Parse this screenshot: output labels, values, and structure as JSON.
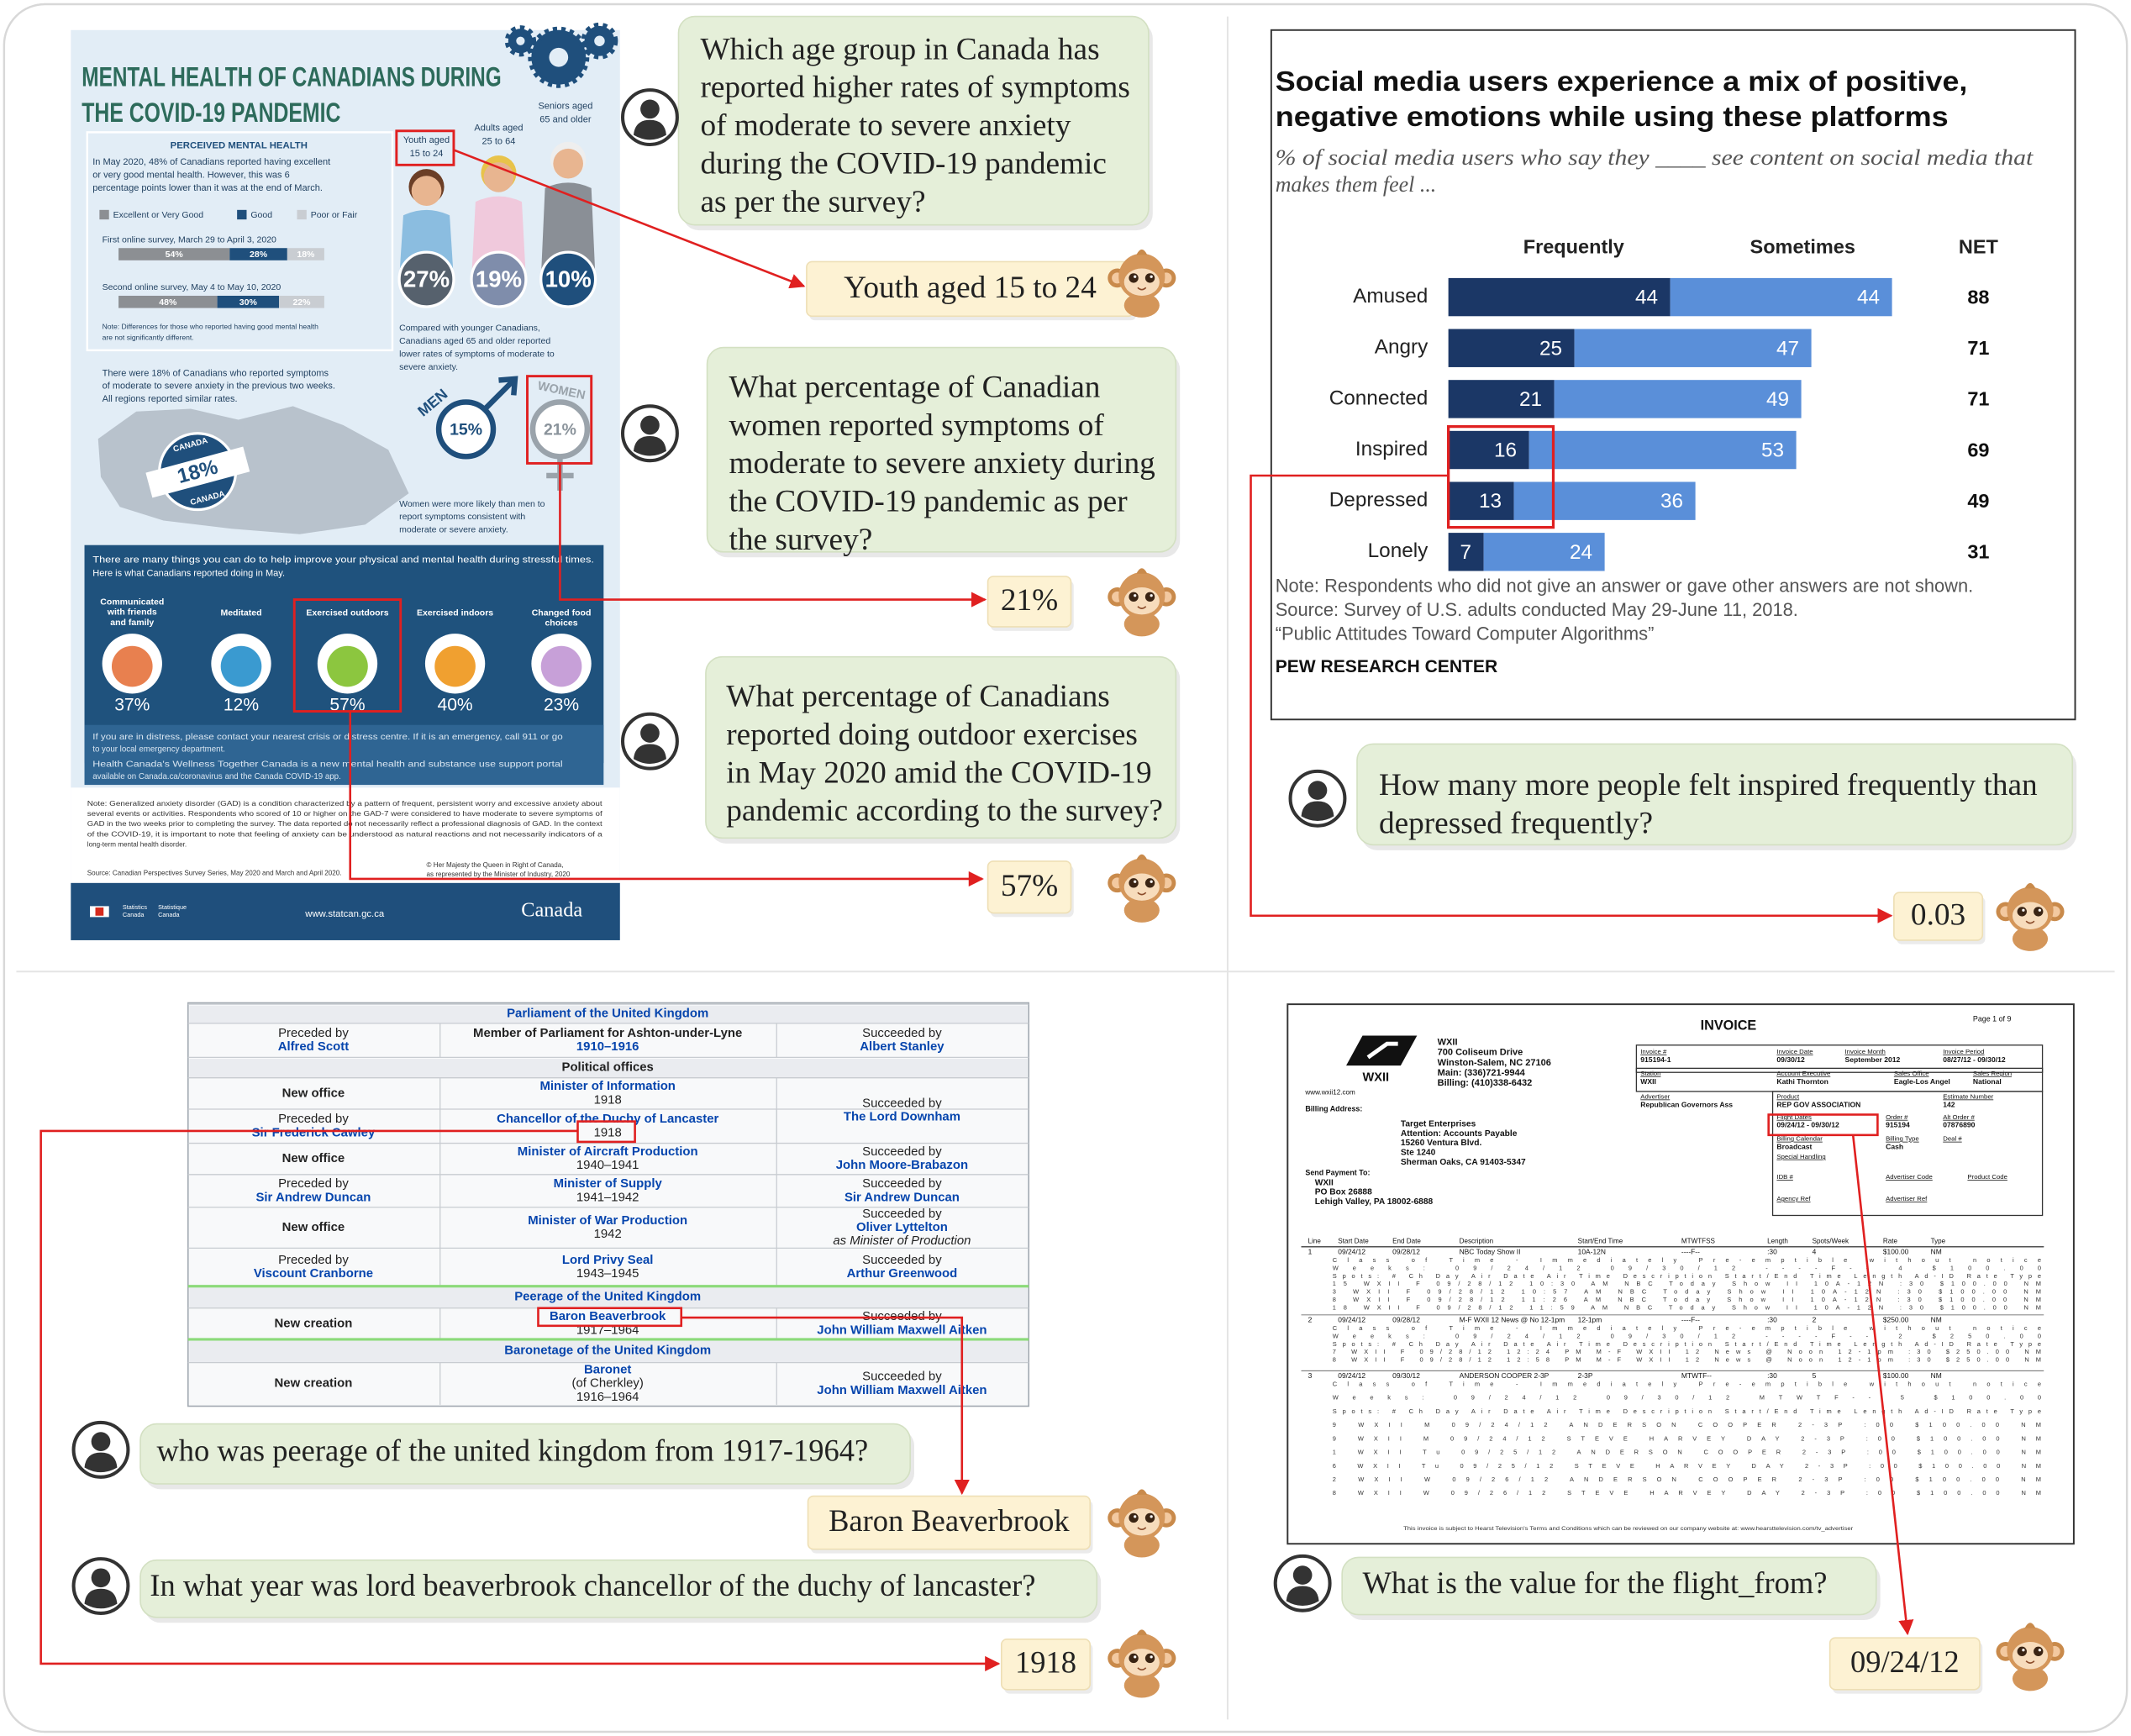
{
  "qa": [
    {
      "question": [
        "Which age group in Canada has",
        "reported higher rates of symptoms",
        "of moderate to severe anxiety",
        "during the COVID-19 pandemic",
        "as per the survey?"
      ],
      "answer": "Youth aged 15 to 24"
    },
    {
      "question": [
        "What percentage of Canadian",
        "women reported symptoms of",
        "moderate to severe anxiety during",
        "the COVID-19 pandemic as per",
        "the survey?"
      ],
      "answer": "21%"
    },
    {
      "question": [
        "What percentage of Canadians",
        "reported doing outdoor exercises",
        "in May 2020 amid the COVID-19",
        "pandemic according to the survey?"
      ],
      "answer": "57%"
    },
    {
      "question": [
        "How many more people felt inspired frequently than",
        "depressed frequently?"
      ],
      "answer": "0.03"
    },
    {
      "question": [
        "who was peerage of the united kingdom from 1917-1964?"
      ],
      "answer": "Baron Beaverbrook"
    },
    {
      "question": [
        "In what year was lord beaverbrook chancellor of the duchy of lancaster?"
      ],
      "answer": "1918"
    },
    {
      "question": [
        "What is the value for the flight_from?"
      ],
      "answer": "09/24/12"
    }
  ],
  "infographic": {
    "title": [
      "MENTAL HEALTH OF CANADIANS DURING",
      "THE COVID-19 PANDEMIC"
    ],
    "section": "PERCEIVED MENTAL HEALTH",
    "intro": [
      "In May 2020, 48% of Canadians reported having excellent",
      "or very good mental health. However, this was 6",
      "percentage points lower than it was at the end of March."
    ],
    "legend": [
      "Excellent or Very Good",
      "Good",
      "Poor or Fair"
    ],
    "surveys": [
      {
        "label": "First online survey, March 29 to April 3, 2020",
        "values": [
          54,
          28,
          18
        ],
        "value_labels": [
          "54%",
          "28%",
          "18%"
        ]
      },
      {
        "label": "Second online survey, May 4 to May 10, 2020",
        "values": [
          48,
          30,
          22
        ],
        "value_labels": [
          "48%",
          "30%",
          "22%"
        ]
      }
    ],
    "survey_note": [
      "Note: Differences for those who reported having good mental health",
      "are not significantly different."
    ],
    "age_groups": [
      {
        "label": [
          "Youth aged",
          "15 to 24"
        ],
        "value": "27%"
      },
      {
        "label": [
          "Adults aged",
          "25 to 64"
        ],
        "value": "19%"
      },
      {
        "label": [
          "Seniors aged",
          "65 and older"
        ],
        "value": "10%"
      }
    ],
    "age_note": [
      "Compared with younger Canadians,",
      "Canadians aged 65 and older reported",
      "lower rates of symptoms of moderate to",
      "severe anxiety."
    ],
    "overall_note": [
      "There were 18% of Canadians who reported symptoms",
      "of moderate to severe anxiety in the previous two weeks.",
      "All regions reported similar rates."
    ],
    "overall_value": "18%",
    "country": "CANADA",
    "gender": [
      {
        "label": "MEN",
        "value": "15%"
      },
      {
        "label": "WOMEN",
        "value": "21%"
      }
    ],
    "gender_note": [
      "Women were more likely than men to",
      "report symptoms consistent with",
      "moderate or severe anxiety."
    ],
    "activities_intro": [
      "There are many things you can do to help improve your physical and mental health during stressful times.",
      "Here is what Canadians reported doing in May."
    ],
    "activities": [
      {
        "label": [
          "Communicated",
          "with friends",
          "and family"
        ],
        "value": "37%"
      },
      {
        "label": [
          "Meditated"
        ],
        "value": "12%"
      },
      {
        "label": [
          "Exercised outdoors"
        ],
        "value": "57%"
      },
      {
        "label": [
          "Exercised indoors"
        ],
        "value": "40%"
      },
      {
        "label": [
          "Changed food",
          "choices"
        ],
        "value": "23%"
      }
    ],
    "help": [
      "If you are in distress, please contact your nearest crisis or distress centre. If it is an emergency, call 911 or go",
      "to your local emergency department.",
      "Health Canada's Wellness Together Canada is a new mental health and substance use support portal",
      "available on Canada.ca/coronavirus and the Canada COVID-19 app."
    ],
    "footnote": [
      "Note: Generalized anxiety disorder (GAD) is a condition characterized by a pattern of frequent, persistent worry and excessive anxiety about",
      "several events or activities. Respondents who scored of 10 or higher on the GAD-7 were considered to have moderate to severe symptoms of",
      "GAD in the two weeks prior to completing the survey. The data reported do not necessarily reflect a professional diagnosis of GAD. In the context",
      "of the COVID-19, it is important to note that feeling of anxiety can be understood as natural reactions and not necessarily indicators of a",
      "long-term mental health disorder."
    ],
    "source": "Source: Canadian Perspectives Survey Series, May 2020 and March and April 2020.",
    "copyright": [
      "© Her Majesty the Queen in Right of Canada,",
      "as represented by the Minister of Industry, 2020"
    ],
    "agency": [
      "Statistics",
      "Canada"
    ],
    "agency_fr": [
      "Statistique",
      "Canada"
    ],
    "website": "www.statcan.gc.ca",
    "wordmark": "Canada"
  },
  "chart_data": {
    "type": "bar",
    "orientation": "horizontal",
    "stacked": true,
    "title": [
      "Social media users experience a mix of positive,",
      "negative emotions while using these platforms"
    ],
    "subtitle": [
      "% of social media users who say they ____ see content on social media that",
      "makes them feel ..."
    ],
    "categories": [
      "Amused",
      "Angry",
      "Connected",
      "Inspired",
      "Depressed",
      "Lonely"
    ],
    "series": [
      {
        "name": "Frequently",
        "color": "#1b3766",
        "values": [
          44,
          25,
          21,
          16,
          13,
          7
        ]
      },
      {
        "name": "Sometimes",
        "color": "#5a8fd9",
        "values": [
          44,
          47,
          49,
          53,
          36,
          24
        ]
      }
    ],
    "net_label": "NET",
    "net": [
      88,
      71,
      71,
      69,
      49,
      31
    ],
    "notes": [
      "Note: Respondents who did not give an answer or gave other answers are not shown.",
      "Source: Survey of U.S. adults conducted May 29-June 11, 2018.",
      "“Public Attitudes Toward Computer Algorithms”"
    ],
    "credit": "PEW RESEARCH CENTER"
  },
  "wiki_table": {
    "rows": [
      {
        "section": "Parliament of the United Kingdom"
      },
      {
        "cells": [
          [
            "Preceded by",
            "Alfred Scott"
          ],
          [
            "Member of Parliament for Ashton-under-Lyne",
            "1910–1916"
          ],
          [
            "Succeeded by",
            "Albert Stanley"
          ]
        ]
      },
      {
        "section": "Political offices"
      },
      {
        "cells": [
          [
            "New office"
          ],
          [
            "Minister of Information",
            "1918"
          ],
          [
            "Succeeded by",
            "The Lord Downham"
          ]
        ]
      },
      {
        "cells": [
          [
            "Preceded by",
            "Sir Frederick Cawley"
          ],
          [
            "Chancellor of the Duchy of Lancaster",
            "1918"
          ]
        ]
      },
      {
        "cells": [
          [
            "New office"
          ],
          [
            "Minister of Aircraft Production",
            "1940–1941"
          ],
          [
            "Succeeded by",
            "John Moore-Brabazon"
          ]
        ]
      },
      {
        "cells": [
          [
            "Preceded by",
            "Sir Andrew Duncan"
          ],
          [
            "Minister of Supply",
            "1941–1942"
          ],
          [
            "Succeeded by",
            "Sir Andrew Duncan"
          ]
        ]
      },
      {
        "cells": [
          [
            "New office"
          ],
          [
            "Minister of War Production",
            "1942"
          ],
          [
            "Succeeded by",
            "Oliver Lyttelton",
            "as Minister of Production"
          ]
        ]
      },
      {
        "cells": [
          [
            "Preceded by",
            "Viscount Cranborne"
          ],
          [
            "Lord Privy Seal",
            "1943–1945"
          ],
          [
            "Succeeded by",
            "Arthur Greenwood"
          ]
        ]
      },
      {
        "section": "Peerage of the United Kingdom"
      },
      {
        "cells": [
          [
            "New creation"
          ],
          [
            "Baron Beaverbrook",
            "1917–1964"
          ],
          [
            "Succeeded by",
            "John William Maxwell Aitken"
          ]
        ]
      },
      {
        "section": "Baronetage of the United Kingdom"
      },
      {
        "cells": [
          [
            "New creation"
          ],
          [
            "Baronet",
            "(of Cherkley)",
            "1916–1964"
          ],
          [
            "Succeeded by",
            "John William Maxwell Aitken"
          ]
        ]
      }
    ]
  },
  "invoice": {
    "title": "INVOICE",
    "page": "Page 1 of 9",
    "logo": "WXII",
    "station_address": [
      "WXII",
      "700 Coliseum Drive",
      "Winston-Salem, NC 27106",
      "Main: (336)721-9944",
      "Billing: (410)338-6432"
    ],
    "website": "www.wxii12.com",
    "billing_label": "Billing Address:",
    "billing_address": [
      "Target Enterprises",
      "Attention: Accounts Payable",
      "15260 Ventura Blvd.",
      "Ste 1240",
      "Sherman Oaks, CA 91403-5347"
    ],
    "payment_label": "Send Payment To:",
    "payment_address": [
      "WXII",
      "PO Box 26888",
      "Lehigh Valley, PA 18002-6888"
    ],
    "fields": [
      {
        "label": "Invoice #",
        "value": "915194-1"
      },
      {
        "label": "Invoice Date",
        "value": "09/30/12"
      },
      {
        "label": "Invoice Month",
        "value": "September 2012"
      },
      {
        "label": "Invoice Period",
        "value": "08/27/12 - 09/30/12"
      },
      {
        "label": "Station",
        "value": "WXII"
      },
      {
        "label": "Account Executive",
        "value": "Kathi Thornton"
      },
      {
        "label": "Sales Office",
        "value": "Eagle-Los Angel"
      },
      {
        "label": "Sales Region",
        "value": "National"
      },
      {
        "label": "Advertiser",
        "value": "Republican Governors Ass"
      },
      {
        "label": "Product",
        "value": "REP GOV ASSOCIATION"
      },
      {
        "label": "Estimate Number",
        "value": "142"
      },
      {
        "label": "Flight Dates",
        "value": "09/24/12 - 09/30/12"
      },
      {
        "label": "Order #",
        "value": "915194"
      },
      {
        "label": "Alt Order #",
        "value": "07876890"
      },
      {
        "label": "Billing Calendar",
        "value": "Broadcast"
      },
      {
        "label": "Billing Type",
        "value": "Cash"
      },
      {
        "label": "Deal #"
      },
      {
        "label": "Special Handling"
      },
      {
        "label": "IDB #"
      },
      {
        "label": "Advertiser Code"
      },
      {
        "label": "Product Code"
      },
      {
        "label": "Agency Ref"
      },
      {
        "label": "Advertiser Ref"
      }
    ],
    "columns": [
      "Line",
      "Start Date",
      "End Date",
      "Description",
      "Start/End Time",
      "MTWTFSS",
      "Length",
      "Spots/Week",
      "Rate",
      "Type"
    ],
    "lines": [
      {
        "cells": [
          "1",
          "09/24/12",
          "09/28/12",
          "NBC Today Show II",
          "10A-12N",
          "----F--",
          ":30",
          "4",
          "$100.00",
          "NM"
        ],
        "details": [
          "Class of Time - Immediately Pre-emptible without notice",
          "Weeks: 09/24/12 09/30/12 ----F-- 4 $100.00",
          "Spots: # Ch Day Air Date Air Time Description Start/End Time Length Ad-ID Rate Type",
          "15 WXII F 09/28/12 10:30 AM NBC Today Show II 10A-12N :30 $100.00 NM",
          "3 WXII F 09/28/12 10:57 AM NBC Today Show II 10A-12N :30 $100.00 NM",
          "8 WXII F 09/28/12 11:26 AM NBC Today Show II 10A-12N :30 $100.00 NM",
          "18 WXII F 09/28/12 11:59 AM NBC Today Show II 10A-12N :30 $100.00 NM"
        ]
      },
      {
        "cells": [
          "2",
          "09/24/12",
          "09/28/12",
          "M-F WXII 12 News @ No 12-1pm",
          "12-1pm",
          "----F--",
          ":30",
          "2",
          "$250.00",
          "NM"
        ],
        "details": [
          "Class of Time - Immediately Pre-emptible without notice",
          "Weeks: 09/24/12 09/30/12 ----F-- 2 $250.00",
          "Spots: # Ch Day Air Date Air Time Description Start/End Time Length Ad-ID Rate Type",
          "7 WXII F 09/28/12 12:24 PM M-F WXII 12 News @ Noon 12-1pm :30 $250.00 NM",
          "8 WXII F 09/28/12 12:58 PM M-F WXII 12 News @ Noon 12-1pm :30 $250.00 NM"
        ]
      },
      {
        "cells": [
          "3",
          "09/24/12",
          "09/30/12",
          "ANDERSON COOPER 2-3P",
          "2-3P",
          "MTWTF--",
          ":30",
          "5",
          "$100.00",
          "NM"
        ],
        "details": [
          "Class of Time - Immediately Pre-emptible without notice",
          "Weeks: 09/24/12 09/30/12 MTWTF-- 5 $100.00",
          "Spots: # Ch Day Air Date Air Time Description Start/End Time Length Ad-ID Rate Type",
          "9 WXII M 09/24/12 ANDERSON COOPER 2-3P :00 $100.00 NM",
          "9 WXII M 09/24/12 STEVE HARVEY DAY 2-3P :00 $100.00 NM",
          "1 WXII Tu 09/25/12 ANDERSON COOPER 2-3P :00 $100.00 NM",
          "6 WXII Tu 09/25/12 STEVE HARVEY DAY 2-3P :00 $100.00 NM",
          "2 WXII W 09/26/12 ANDERSON COOPER 2-3P :00 $100.00 NM",
          "8 WXII W 09/26/12 STEVE HARVEY DAY 2-3P :00 $100.00 NM"
        ]
      }
    ],
    "footer": "This invoice is subject to Hearst Television's Terms and Conditions which can be reviewed on our company website at: www.hearsttelevision.com/tv_advertiser"
  }
}
